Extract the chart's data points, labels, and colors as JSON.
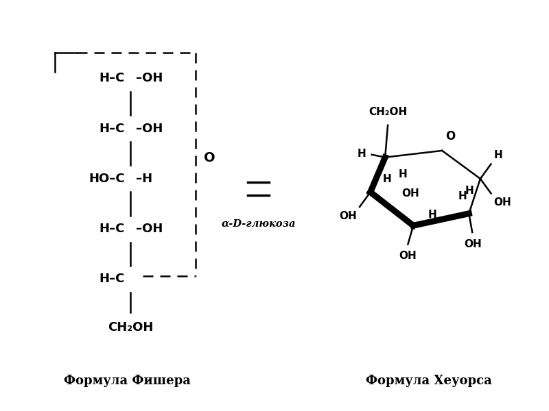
{
  "background_color": "#ffffff",
  "title_left": "Формула Фишера",
  "title_right": "Формула Хеуорса",
  "label_center": "α-D-глюкоза",
  "fischer_bottom": "CH₂OH"
}
